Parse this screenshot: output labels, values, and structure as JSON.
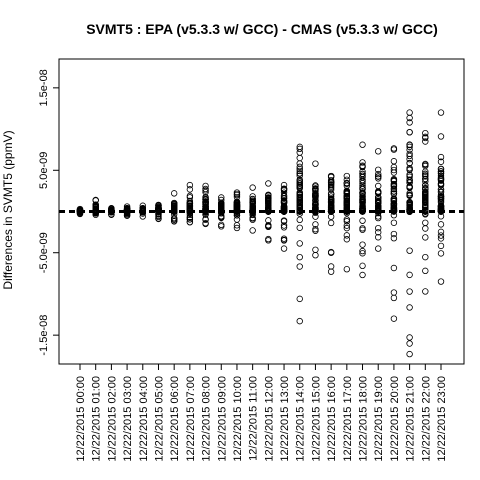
{
  "chart_data": {
    "type": "scatter",
    "title": "SVMT5 : EPA (v5.3.3 w/ GCC) - CMAS (v5.3.3 w/ GCC)",
    "xlabel": "",
    "ylabel": "Differences in SVMT5 (ppmV)",
    "ylim": [
      -1.85e-08,
      1.85e-08
    ],
    "y_ticks": [
      -1.5e-08,
      -5e-09,
      5e-09,
      1.5e-08
    ],
    "y_tick_labels": [
      "-1.5e-08",
      "-5.0e-09",
      "5.0e-09",
      "1.5e-08"
    ],
    "reference_line_y": 0,
    "categories": [
      "12/22/2015 00:00",
      "12/22/2015 01:00",
      "12/22/2015 02:00",
      "12/22/2015 03:00",
      "12/22/2015 04:00",
      "12/22/2015 05:00",
      "12/22/2015 06:00",
      "12/22/2015 07:00",
      "12/22/2015 08:00",
      "12/22/2015 09:00",
      "12/22/2015 10:00",
      "12/22/2015 11:00",
      "12/22/2015 12:00",
      "12/22/2015 13:00",
      "12/22/2015 14:00",
      "12/22/2015 15:00",
      "12/22/2015 16:00",
      "12/22/2015 17:00",
      "12/22/2015 18:00",
      "12/22/2015 19:00",
      "12/22/2015 20:00",
      "12/22/2015 21:00",
      "12/22/2015 22:00",
      "12/22/2015 23:00"
    ],
    "ranges": [
      {
        "min": -3e-10,
        "max": 3e-10
      },
      {
        "min": -4e-10,
        "max": 1.4e-09
      },
      {
        "min": -4e-10,
        "max": 4e-10
      },
      {
        "min": -5e-10,
        "max": 6e-10
      },
      {
        "min": -6e-10,
        "max": 7e-10
      },
      {
        "min": -9e-10,
        "max": 8e-10
      },
      {
        "min": -1.2e-09,
        "max": 2.2e-09
      },
      {
        "min": -1.3e-09,
        "max": 3.2e-09
      },
      {
        "min": -1.5e-09,
        "max": 3.1e-09
      },
      {
        "min": -1.8e-09,
        "max": 1.7e-09
      },
      {
        "min": -2e-09,
        "max": 2.3e-09
      },
      {
        "min": -2.3e-09,
        "max": 2.9e-09
      },
      {
        "min": -3.5e-09,
        "max": 3.4e-09
      },
      {
        "min": -4.5e-09,
        "max": 3.2e-09
      },
      {
        "min": -1.33e-08,
        "max": 7.6e-09
      },
      {
        "min": -5.3e-09,
        "max": 5.8e-09
      },
      {
        "min": -7.3e-09,
        "max": 4.3e-09
      },
      {
        "min": -7e-09,
        "max": 4.3e-09
      },
      {
        "min": -7.7e-09,
        "max": 8.1e-09
      },
      {
        "min": -4.5e-09,
        "max": 7.3e-09
      },
      {
        "min": -1.3e-08,
        "max": 6.1e-09
      },
      {
        "min": -1.73e-08,
        "max": 1.2e-08
      },
      {
        "min": -9.7e-09,
        "max": 9.5e-09
      },
      {
        "min": -8.5e-09,
        "max": 1.2e-08
      }
    ]
  }
}
